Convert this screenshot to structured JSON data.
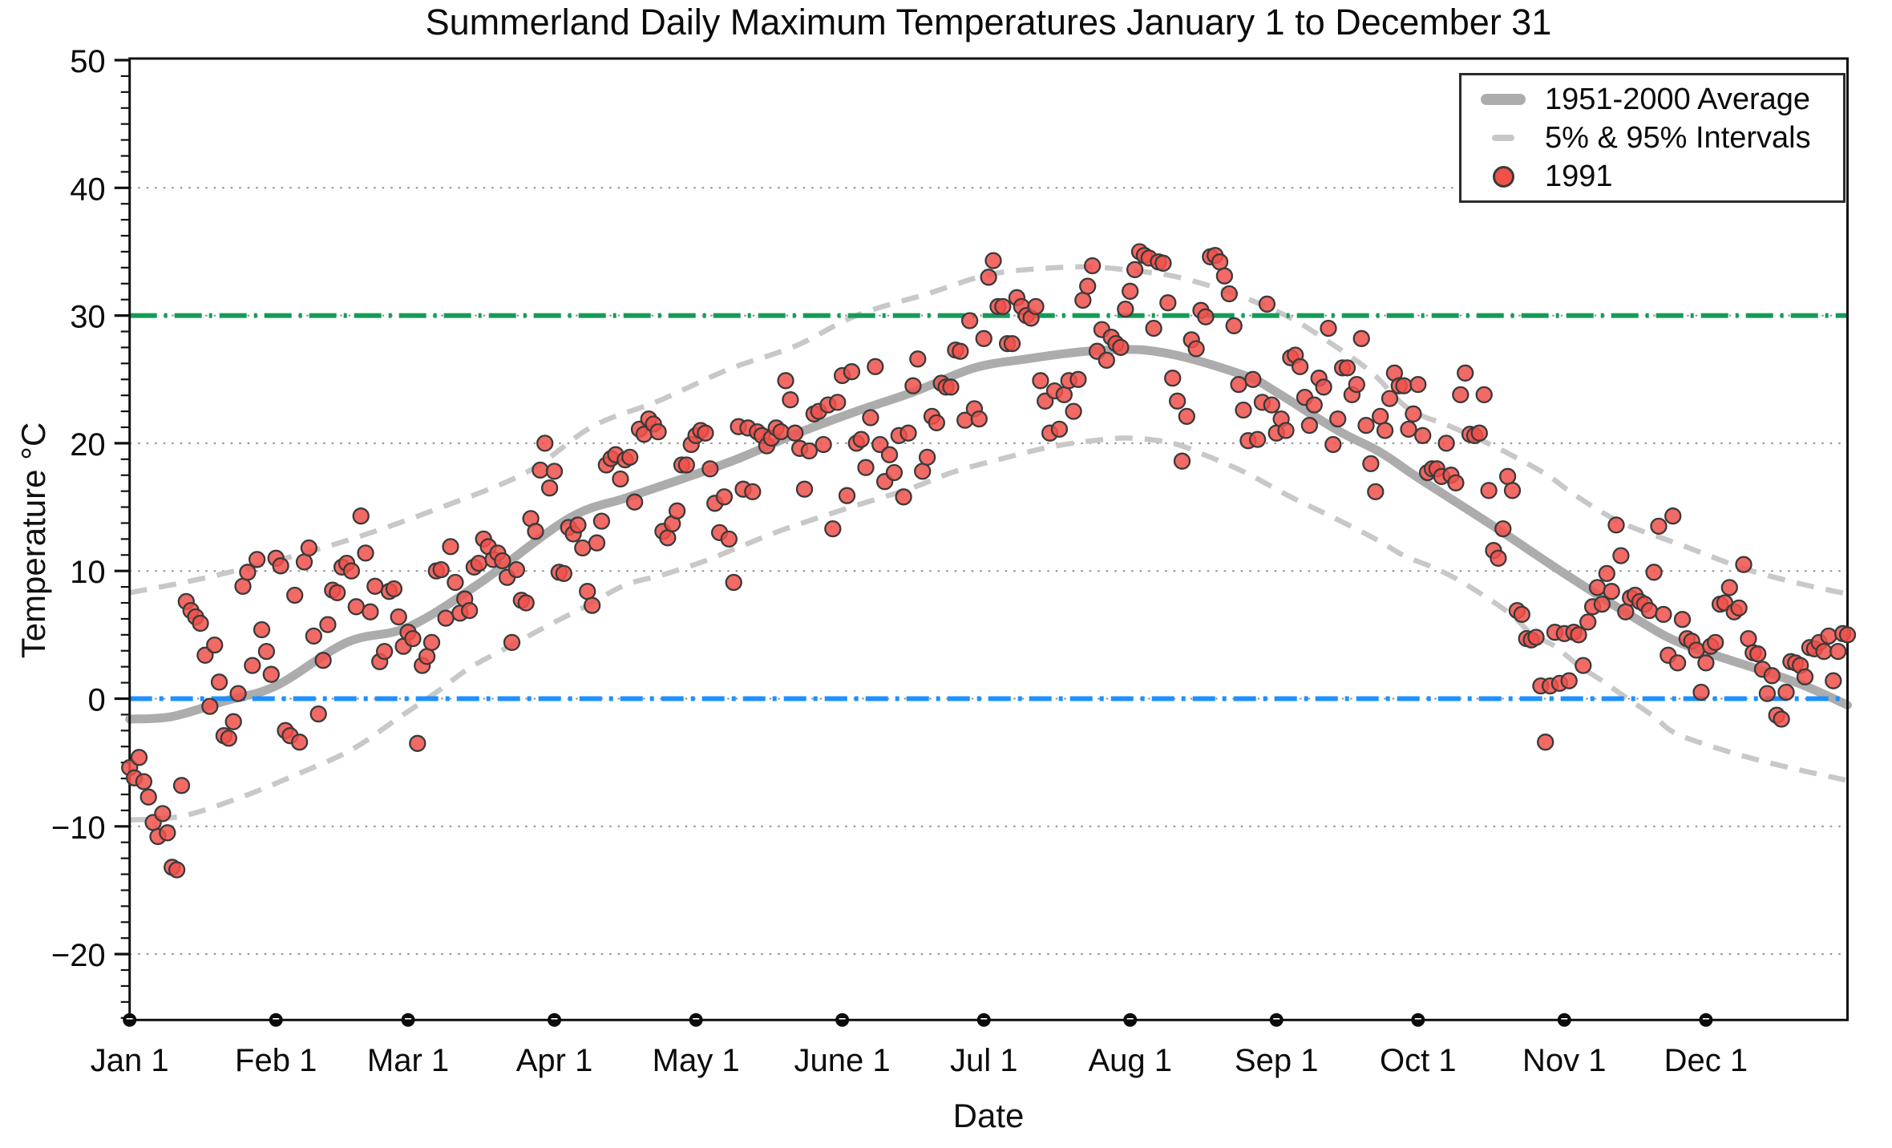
{
  "chart": {
    "title": "Summerland Daily Maximum Temperatures January 1 to December 31"
  },
  "axes": {
    "x_label": "Date",
    "y_label": "Temperature °C",
    "y_tick_values": [
      -20,
      -10,
      0,
      10,
      20,
      30,
      40,
      50
    ],
    "y_tick_labels": [
      "−20",
      "−10",
      "0",
      "10",
      "20",
      "30",
      "40",
      "50"
    ],
    "y_gridline_values": [
      -20,
      -10,
      0,
      10,
      20,
      30,
      40
    ],
    "month_labels": [
      "Jan 1",
      "Feb 1",
      "Mar 1",
      "Apr 1",
      "May 1",
      "June 1",
      "Jul 1",
      "Aug 1",
      "Sep 1",
      "Oct 1",
      "Nov 1",
      "Dec 1"
    ],
    "month_start_days": [
      1,
      32,
      60,
      91,
      121,
      152,
      182,
      213,
      244,
      274,
      305,
      335
    ]
  },
  "legend": {
    "items": [
      {
        "label": "1951-2000 Average",
        "marker": "thick-gray-line"
      },
      {
        "label": "5% & 95% Intervals",
        "marker": "gray-dash"
      },
      {
        "label": "1991",
        "marker": "red-dot"
      }
    ]
  },
  "colors": {
    "average_line": "#ACACAC",
    "interval_line": "#C8C8C8",
    "point_fill": "#F0504A",
    "point_stroke": "#3a3a3a",
    "threshold_30": "#169B57",
    "freezing_0": "#1E90FF",
    "gridline": "#8f8f8f",
    "axis": "#111111"
  },
  "chart_data": {
    "type": "scatter",
    "title": "Summerland Daily Maximum Temperatures January 1 to December 31",
    "xlabel": "Date",
    "ylabel": "Temperature °C",
    "x_unit": "day_of_year",
    "xlim_days": [
      1,
      365
    ],
    "ylim": [
      -25,
      50
    ],
    "grid": "dotted horizontal every 10 °C",
    "legend_position": "top-right",
    "reference_lines": [
      {
        "value": 30,
        "color": "#169B57",
        "style": "dash-dot"
      },
      {
        "value": 0,
        "color": "#1E90FF",
        "style": "dash-dot"
      }
    ],
    "series": {
      "average": {
        "name": "1951-2000 Average",
        "type": "line",
        "points": [
          [
            1,
            -1.6
          ],
          [
            10,
            -1.4
          ],
          [
            21,
            -0.2
          ],
          [
            32,
            1.0
          ],
          [
            47,
            4.4
          ],
          [
            60,
            5.6
          ],
          [
            75,
            9.0
          ],
          [
            94,
            14.1
          ],
          [
            106,
            15.7
          ],
          [
            118,
            17.2
          ],
          [
            130,
            18.8
          ],
          [
            142,
            20.7
          ],
          [
            155,
            22.5
          ],
          [
            167,
            24.0
          ],
          [
            180,
            25.9
          ],
          [
            191,
            26.6
          ],
          [
            201,
            27.1
          ],
          [
            208,
            27.3
          ],
          [
            216,
            27.3
          ],
          [
            225,
            26.7
          ],
          [
            238,
            25.2
          ],
          [
            244,
            24.0
          ],
          [
            257,
            21.0
          ],
          [
            266,
            19.3
          ],
          [
            274,
            17.3
          ],
          [
            290,
            13.5
          ],
          [
            305,
            9.8
          ],
          [
            320,
            6.3
          ],
          [
            330,
            4.3
          ],
          [
            347,
            2.2
          ],
          [
            356,
            1.0
          ],
          [
            365,
            -0.5
          ]
        ]
      },
      "interval_upper_95": {
        "name": "95% Interval",
        "type": "dashed-line",
        "points": [
          [
            1,
            8.3
          ],
          [
            15,
            9.3
          ],
          [
            32,
            10.8
          ],
          [
            48,
            12.5
          ],
          [
            65,
            14.7
          ],
          [
            85,
            17.7
          ],
          [
            99,
            21.3
          ],
          [
            113,
            23.3
          ],
          [
            128,
            25.8
          ],
          [
            142,
            27.6
          ],
          [
            155,
            30.0
          ],
          [
            170,
            31.7
          ],
          [
            183,
            33.2
          ],
          [
            195,
            33.7
          ],
          [
            205,
            33.8
          ],
          [
            214,
            33.5
          ],
          [
            222,
            33.1
          ],
          [
            231,
            32.2
          ],
          [
            238,
            31.3
          ],
          [
            247,
            29.8
          ],
          [
            254,
            28.2
          ],
          [
            264,
            25.6
          ],
          [
            272,
            22.7
          ],
          [
            281,
            21.3
          ],
          [
            291,
            19.6
          ],
          [
            301,
            17.6
          ],
          [
            307,
            16.0
          ],
          [
            317,
            13.8
          ],
          [
            330,
            12.0
          ],
          [
            343,
            10.2
          ],
          [
            355,
            9.0
          ],
          [
            365,
            8.2
          ]
        ]
      },
      "interval_lower_5": {
        "name": "5% Interval",
        "type": "dashed-line",
        "points": [
          [
            1,
            -9.5
          ],
          [
            12,
            -9.2
          ],
          [
            24,
            -7.8
          ],
          [
            36,
            -6.0
          ],
          [
            48,
            -4.0
          ],
          [
            58,
            -1.5
          ],
          [
            66,
            0.5
          ],
          [
            73,
            2.4
          ],
          [
            81,
            4.0
          ],
          [
            89,
            5.6
          ],
          [
            98,
            7.3
          ],
          [
            106,
            8.9
          ],
          [
            114,
            9.7
          ],
          [
            123,
            10.8
          ],
          [
            131,
            12.0
          ],
          [
            140,
            13.3
          ],
          [
            153,
            14.9
          ],
          [
            166,
            16.4
          ],
          [
            176,
            17.8
          ],
          [
            187,
            18.9
          ],
          [
            196,
            19.7
          ],
          [
            205,
            20.2
          ],
          [
            213,
            20.4
          ],
          [
            222,
            20.0
          ],
          [
            230,
            18.9
          ],
          [
            238,
            17.6
          ],
          [
            247,
            15.8
          ],
          [
            256,
            14.2
          ],
          [
            265,
            12.5
          ],
          [
            271,
            11.2
          ],
          [
            277,
            10.3
          ],
          [
            283,
            9.2
          ],
          [
            293,
            6.8
          ],
          [
            298,
            5.1
          ],
          [
            303,
            4.1
          ],
          [
            308,
            2.6
          ],
          [
            313,
            1.4
          ],
          [
            318,
            0.1
          ],
          [
            324,
            -1.4
          ],
          [
            328,
            -2.6
          ],
          [
            335,
            -3.6
          ],
          [
            345,
            -4.7
          ],
          [
            355,
            -5.6
          ],
          [
            365,
            -6.4
          ]
        ]
      },
      "year_1991": {
        "name": "1991",
        "type": "scatter",
        "month_order": [
          "jan",
          "feb",
          "mar",
          "apr",
          "may",
          "jun",
          "jul",
          "aug",
          "sep",
          "oct",
          "nov",
          "dec"
        ],
        "daily_max_by_month": {
          "jan": [
            -5.4,
            -6.2,
            -4.6,
            -6.5,
            -7.7,
            -9.7,
            -10.8,
            -9.0,
            -10.5,
            -13.2,
            -13.4,
            -6.8,
            7.6,
            6.9,
            6.4,
            5.9,
            3.4,
            -0.6,
            4.2,
            1.3,
            -2.9,
            -3.1,
            -1.8,
            0.4,
            8.8,
            9.9,
            2.6,
            10.9,
            5.4,
            3.7,
            1.9
          ],
          "feb": [
            11.0,
            10.4,
            -2.5,
            -2.9,
            8.1,
            -3.4,
            10.7,
            11.8,
            4.9,
            -1.2,
            3.0,
            5.8,
            8.5,
            8.3,
            10.3,
            10.6,
            10.0,
            7.2,
            14.3,
            11.4,
            6.8,
            8.8,
            2.9,
            3.7,
            8.4,
            8.6,
            6.4,
            4.1
          ],
          "mar": [
            5.2,
            4.7,
            -3.5,
            2.6,
            3.3,
            4.4,
            10.0,
            10.1,
            6.3,
            11.9,
            9.1,
            6.7,
            7.8,
            6.9,
            10.3,
            10.6,
            12.5,
            11.9,
            10.9,
            11.4,
            10.8,
            9.5,
            4.4,
            10.1,
            7.7,
            7.5,
            14.1,
            13.1,
            17.9,
            20.0,
            16.5
          ],
          "apr": [
            17.8,
            9.9,
            9.8,
            13.4,
            12.9,
            13.6,
            11.8,
            8.4,
            7.3,
            12.2,
            13.9,
            18.3,
            18.8,
            19.1,
            17.2,
            18.7,
            18.9,
            15.4,
            21.1,
            20.7,
            21.9,
            21.5,
            20.9,
            13.1,
            12.6,
            13.7,
            14.7,
            18.3,
            18.3,
            19.9
          ],
          "may": [
            20.6,
            21.0,
            20.8,
            18.0,
            15.3,
            13.0,
            15.8,
            12.5,
            9.1,
            21.3,
            16.4,
            21.2,
            16.2,
            20.9,
            20.6,
            19.8,
            20.4,
            21.2,
            20.9,
            24.9,
            23.4,
            20.8,
            19.6,
            16.4,
            19.4,
            22.3,
            22.5,
            19.9,
            23.0,
            13.3,
            23.2
          ],
          "jun": [
            25.3,
            15.9,
            25.6,
            20.0,
            20.3,
            18.1,
            22.0,
            26.0,
            19.9,
            17.0,
            19.1,
            17.7,
            20.6,
            15.8,
            20.8,
            24.5,
            26.6,
            17.8,
            18.9,
            22.1,
            21.6,
            24.7,
            24.4,
            24.4,
            27.3,
            27.2,
            21.8,
            29.6,
            22.7,
            21.9
          ],
          "jul": [
            28.2,
            33.0,
            34.3,
            30.7,
            30.7,
            27.8,
            27.8,
            31.4,
            30.7,
            30.0,
            29.8,
            30.7,
            24.9,
            23.3,
            20.8,
            24.1,
            21.1,
            23.8,
            24.9,
            22.5,
            25.0,
            31.2,
            32.3,
            33.9,
            27.2,
            28.9,
            26.5,
            28.3,
            27.8,
            27.5,
            30.5
          ],
          "aug": [
            31.9,
            33.6,
            35.0,
            34.7,
            34.5,
            29.0,
            34.2,
            34.1,
            31.0,
            25.1,
            23.3,
            18.6,
            22.1,
            28.1,
            27.4,
            30.4,
            29.9,
            34.6,
            34.7,
            34.2,
            33.1,
            31.7,
            29.2,
            24.6,
            22.6,
            20.2,
            25.0,
            20.3,
            23.2,
            30.9,
            23.0
          ],
          "sep": [
            20.8,
            21.9,
            21.0,
            26.7,
            26.9,
            26.0,
            23.6,
            21.4,
            23.0,
            25.1,
            24.4,
            29.0,
            19.9,
            21.9,
            25.9,
            25.9,
            23.8,
            24.6,
            28.2,
            21.4,
            18.4,
            16.2,
            22.1,
            21.0,
            23.5,
            25.5,
            24.5,
            24.5,
            21.1,
            22.3
          ],
          "oct": [
            24.6,
            20.6,
            17.7,
            18.0,
            18.0,
            17.4,
            20.0,
            17.5,
            16.9,
            23.8,
            25.5,
            20.7,
            20.6,
            20.8,
            23.8,
            16.3,
            11.6,
            11.0,
            13.3,
            17.4,
            16.3,
            6.9,
            6.6,
            4.7,
            4.6,
            4.8,
            1.0,
            -3.4,
            1.0,
            5.2,
            1.2
          ],
          "nov": [
            5.1,
            1.4,
            5.2,
            5.0,
            2.6,
            6.0,
            7.2,
            8.7,
            7.4,
            9.8,
            8.4,
            13.6,
            11.2,
            6.8,
            7.9,
            8.1,
            7.6,
            7.4,
            6.9,
            9.9,
            13.5,
            6.6,
            3.4,
            14.3,
            2.8,
            6.2,
            4.7,
            4.5,
            3.8,
            0.5
          ],
          "dec": [
            2.8,
            4.1,
            4.4,
            7.4,
            7.5,
            8.7,
            6.8,
            7.1,
            10.5,
            4.7,
            3.6,
            3.5,
            2.3,
            0.4,
            1.8,
            -1.3,
            -1.6,
            0.5,
            2.9,
            2.8,
            2.6,
            1.7,
            4.0,
            3.9,
            4.4,
            3.7,
            4.9,
            1.4,
            3.7,
            5.1,
            5.0
          ]
        }
      }
    }
  }
}
